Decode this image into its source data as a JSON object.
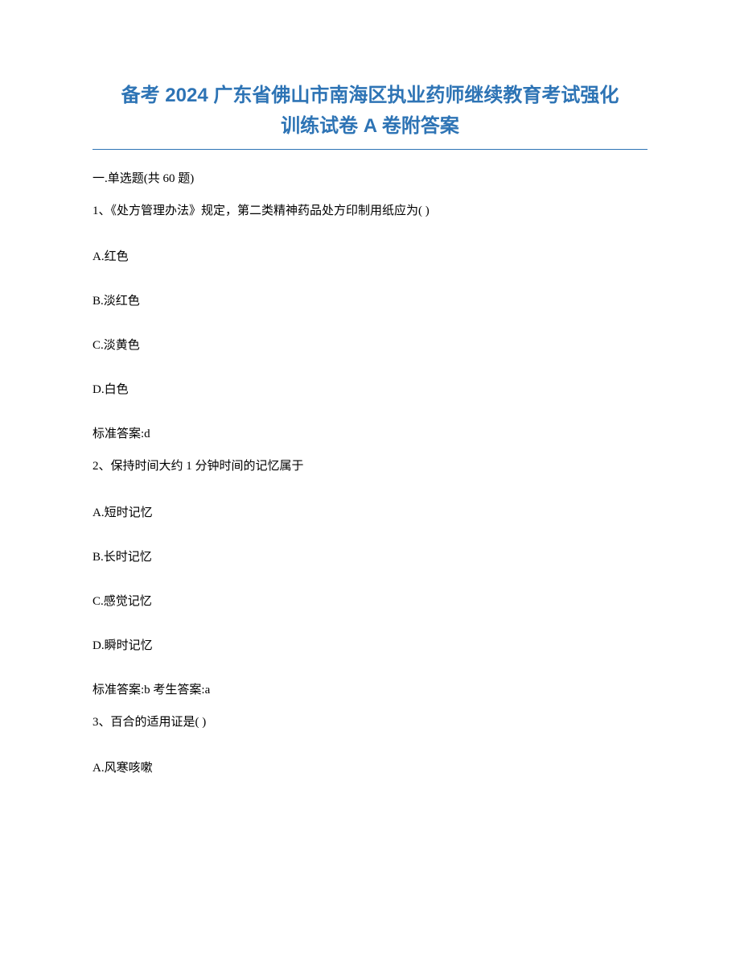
{
  "title": {
    "line1": "备考 2024 广东省佛山市南海区执业药师继续教育考试强化",
    "line2": "训练试卷 A 卷附答案",
    "color": "#2e74b5",
    "fontsize": 24
  },
  "section_header": "一.单选题(共 60 题)",
  "body_fontsize": 15,
  "body_color": "#000000",
  "background_color": "#ffffff",
  "questions": [
    {
      "stem": "1、《处方管理办法》规定，第二类精神药品处方印制用纸应为( )",
      "options": [
        "A.红色",
        "B.淡红色",
        "C.淡黄色",
        "D.白色"
      ],
      "answer": "标准答案:d"
    },
    {
      "stem": "2、保持时间大约 1 分钟时间的记忆属于",
      "options": [
        "A.短时记忆",
        "B.长时记忆",
        "C.感觉记忆",
        "D.瞬时记忆"
      ],
      "answer": "标准答案:b 考生答案:a"
    },
    {
      "stem": "3、百合的适用证是( )",
      "options": [
        "A.风寒咳嗽"
      ],
      "answer": null
    }
  ]
}
